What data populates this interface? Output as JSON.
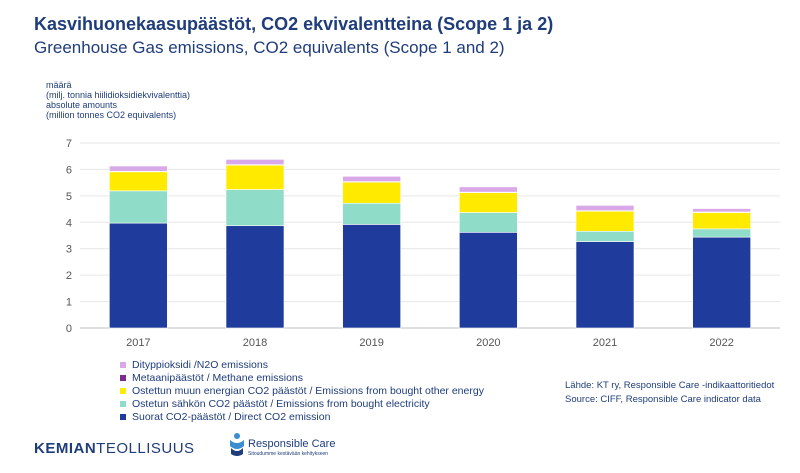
{
  "header": {
    "title_fi": "Kasvihuonekaasupäästöt, CO2 ekvivalentteina (Scope 1 ja 2)",
    "title_en": "Greenhouse Gas emissions, CO2 equivalents (Scope 1 and 2)"
  },
  "y_axis_label": {
    "line1": "määrä",
    "line2": "(milj. tonnia hiilidioksidiekvivalenttia)",
    "line3": "absolute amounts",
    "line4": "(million tonnes CO2 equivalents)"
  },
  "source": {
    "line1": "Lähde: KT ry, Responsible Care -indikaattoritiedot",
    "line2": "Source: CIFF, Responsible Care indicator data"
  },
  "logos": {
    "kemian_bold": "KEMIAN",
    "kemian_rest": "TEOLLISUUS",
    "rc_name": "Responsible Care",
    "rc_tagline": "Sitoudumme kestävään kehitykseen"
  },
  "colors": {
    "n2o": "#d9a8e8",
    "methane": "#7b2c8f",
    "bought_energy": "#ffea00",
    "bought_electricity": "#8fdcc8",
    "direct": "#1f3c9c"
  },
  "chart_data": {
    "type": "bar",
    "stacked": true,
    "categories": [
      "2017",
      "2018",
      "2019",
      "2020",
      "2021",
      "2022"
    ],
    "ylim": [
      0,
      7
    ],
    "yticks": [
      0,
      1,
      2,
      3,
      4,
      5,
      6,
      7
    ],
    "grid": true,
    "legend_position": "bottom-left",
    "series": [
      {
        "name": "Suorat CO2-päästöt / Direct CO2 emission",
        "key": "direct",
        "values": [
          3.97,
          3.87,
          3.92,
          3.62,
          3.27,
          3.44
        ]
      },
      {
        "name": "Ostetun sähkön CO2 päästöt / Emissions from bought electricity",
        "key": "bought_electricity",
        "values": [
          1.22,
          1.37,
          0.8,
          0.75,
          0.39,
          0.31
        ]
      },
      {
        "name": "Ostettun muun energian CO2 päästöt / Emissions from bought other energy",
        "key": "bought_energy",
        "values": [
          0.72,
          0.92,
          0.8,
          0.75,
          0.76,
          0.62
        ]
      },
      {
        "name": "Metaanipäästöt / Methane emissions",
        "key": "methane",
        "values": [
          0.02,
          0.02,
          0.02,
          0.02,
          0.02,
          0.02
        ]
      },
      {
        "name": "Dityppioksidi /N2O emissions",
        "key": "n2o",
        "values": [
          0.2,
          0.2,
          0.2,
          0.2,
          0.2,
          0.13
        ]
      }
    ]
  }
}
